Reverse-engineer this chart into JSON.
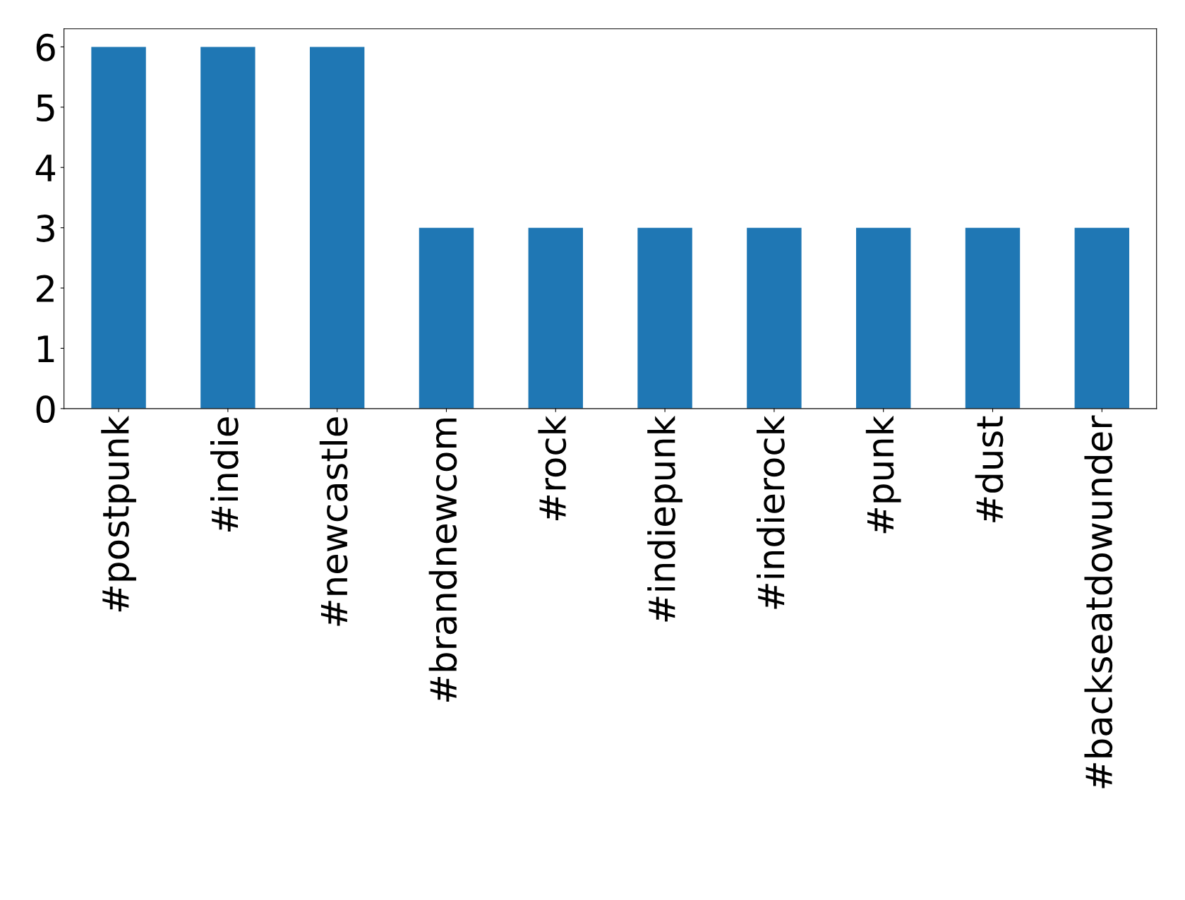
{
  "chart_data": {
    "type": "bar",
    "categories": [
      "#postpunk",
      "#indie",
      "#newcastle",
      "#brandnewcom",
      "#rock",
      "#indiepunk",
      "#indierock",
      "#punk",
      "#dust",
      "#backseatdowunder"
    ],
    "values": [
      6,
      6,
      6,
      3,
      3,
      3,
      3,
      3,
      3,
      3
    ],
    "color": "#1f77b4",
    "ylim": [
      0,
      6.3
    ],
    "yticks": [
      0,
      1,
      2,
      3,
      4,
      5,
      6
    ],
    "grid": false,
    "legend": false
  }
}
